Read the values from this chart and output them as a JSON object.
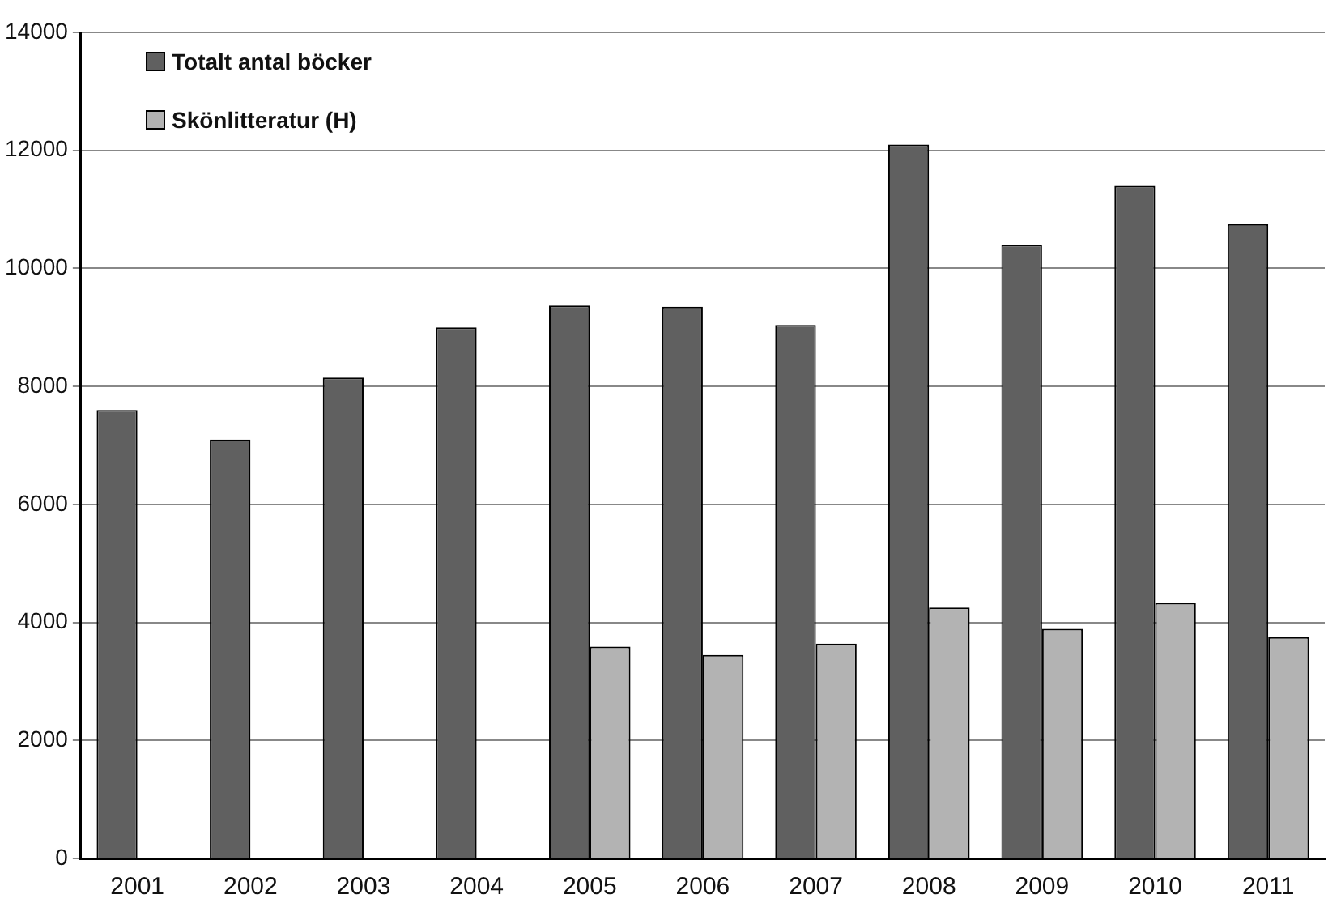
{
  "chart_data": {
    "type": "bar",
    "categories": [
      "2001",
      "2002",
      "2003",
      "2004",
      "2005",
      "2006",
      "2007",
      "2008",
      "2009",
      "2010",
      "2011"
    ],
    "series": [
      {
        "name": "Totalt antal böcker",
        "color": "#606060",
        "values": [
          7600,
          7100,
          8150,
          9000,
          9370,
          9350,
          9040,
          12100,
          10400,
          11400,
          10750
        ]
      },
      {
        "name": "Skönlitteratur (H)",
        "color": "#b3b3b3",
        "values": [
          null,
          null,
          null,
          null,
          3590,
          3450,
          3640,
          4250,
          3890,
          4330,
          3750
        ]
      }
    ],
    "ylim": [
      0,
      14000
    ],
    "yticks": [
      0,
      2000,
      4000,
      6000,
      8000,
      10000,
      12000,
      14000
    ],
    "grid": "y",
    "legend": "top left"
  }
}
